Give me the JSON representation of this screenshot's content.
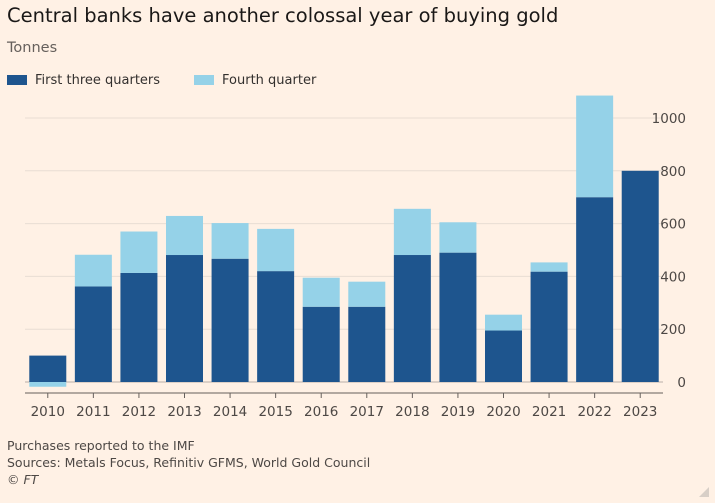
{
  "title": "Central banks have another colossal year of buying gold",
  "subtitle": "Tonnes",
  "legend": [
    {
      "label": "First three quarters",
      "color": "#1e558e"
    },
    {
      "label": "Fourth quarter",
      "color": "#95d2e8"
    }
  ],
  "footer": {
    "note": "Purchases reported to the IMF",
    "sources": "Sources: Metals Focus, Refinitiv GFMS, World Gold Council",
    "copyright": "© FT"
  },
  "chart_data": {
    "type": "bar",
    "stacked": true,
    "categories": [
      "2010",
      "2011",
      "2012",
      "2013",
      "2014",
      "2015",
      "2016",
      "2017",
      "2018",
      "2019",
      "2020",
      "2021",
      "2022",
      "2023"
    ],
    "series": [
      {
        "name": "First three quarters",
        "color": "#1e558e",
        "values": [
          100,
          362,
          413,
          481,
          467,
          420,
          285,
          285,
          481,
          490,
          195,
          418,
          700,
          800
        ]
      },
      {
        "name": "Fourth quarter",
        "color": "#95d2e8",
        "values": [
          -18,
          120,
          157,
          148,
          135,
          160,
          110,
          95,
          175,
          115,
          60,
          35,
          385,
          0
        ]
      }
    ],
    "ylim": [
      -20,
      1100
    ],
    "yticks": [
      0,
      200,
      400,
      600,
      800,
      1000
    ],
    "y_axis_side": "right",
    "grid": true,
    "legend_position": "top-left"
  }
}
